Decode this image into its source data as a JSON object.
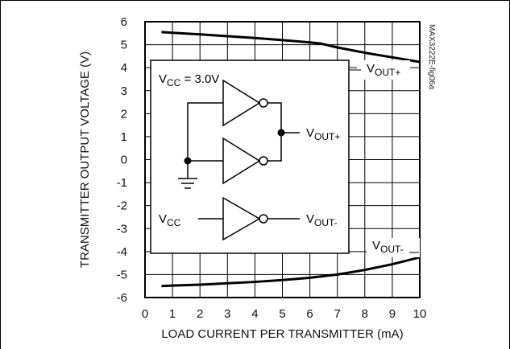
{
  "chart_data": {
    "type": "line",
    "xlabel": "LOAD CURRENT PER TRANSMITTER (mA)",
    "ylabel": "TRANSMITTER OUTPUT VOLTAGE (V)",
    "xlim": [
      0,
      10
    ],
    "ylim": [
      -6,
      6
    ],
    "x_ticks": [
      "0",
      "1",
      "2",
      "3",
      "4",
      "5",
      "6",
      "7",
      "8",
      "9",
      "10"
    ],
    "y_ticks": [
      "6",
      "5",
      "4",
      "3",
      "2",
      "1",
      "0",
      "-1",
      "-2",
      "-3",
      "-4",
      "-5",
      "-6"
    ],
    "grid": true,
    "figure_id": "MAX3222E-fig06a",
    "series": [
      {
        "name": "VOUT+",
        "label_main": "V",
        "label_sub": "OUT+",
        "x": [
          0.6,
          1.0,
          2.0,
          3.0,
          4.0,
          5.0,
          6.0,
          6.4,
          7.0,
          8.0,
          9.0,
          10.0
        ],
        "y": [
          5.55,
          5.52,
          5.45,
          5.37,
          5.29,
          5.2,
          5.1,
          5.05,
          4.88,
          4.65,
          4.45,
          4.25
        ]
      },
      {
        "name": "VOUT-",
        "label_main": "V",
        "label_sub": "OUT-",
        "x": [
          0.6,
          1.0,
          2.0,
          3.0,
          4.0,
          5.0,
          6.0,
          7.0,
          8.0,
          9.0,
          10.0
        ],
        "y": [
          -5.5,
          -5.48,
          -5.44,
          -5.38,
          -5.32,
          -5.24,
          -5.14,
          -5.0,
          -4.8,
          -4.55,
          -4.25
        ]
      }
    ],
    "inset": {
      "vcc_label_main": "V",
      "vcc_label_sub": "CC",
      "vcc_value": " = 3.0V",
      "vcc_input_main": "V",
      "vcc_input_sub": "CC",
      "out_plus_main": "V",
      "out_plus_sub": "OUT+",
      "out_minus_main": "V",
      "out_minus_sub": "OUT-"
    }
  }
}
